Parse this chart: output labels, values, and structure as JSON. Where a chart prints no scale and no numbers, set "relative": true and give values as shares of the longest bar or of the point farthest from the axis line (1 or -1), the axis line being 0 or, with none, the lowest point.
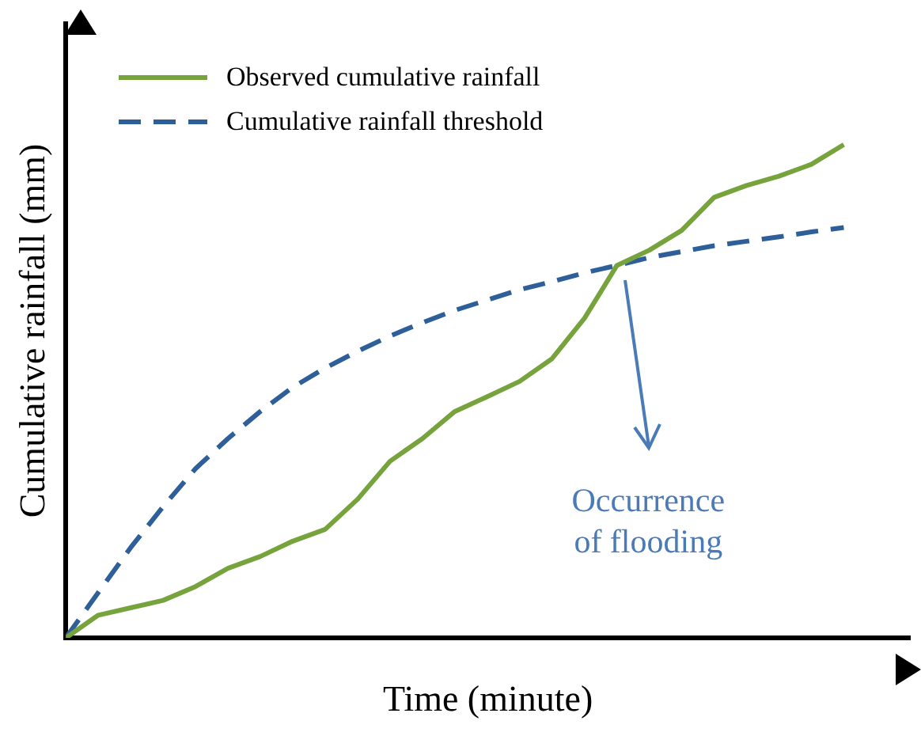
{
  "chart_data": {
    "type": "line",
    "relative": true,
    "xlabel": "Time (minute)",
    "ylabel": "Cumulative rainfall (mm)",
    "legend": "top left",
    "grid": false,
    "marker": "none",
    "categories": [
      null,
      null,
      null,
      null,
      null,
      null,
      null,
      null,
      null,
      null,
      null,
      null,
      null,
      null,
      null,
      null,
      null,
      null,
      null,
      null,
      null,
      null,
      null,
      null,
      null
    ],
    "series": [
      {
        "name": "Observed cumulative rainfall",
        "color": "#77a33d",
        "line_style": "solid",
        "values": [
          0,
          0.046,
          0.061,
          0.076,
          0.104,
          0.141,
          0.165,
          0.196,
          0.22,
          0.281,
          0.358,
          0.404,
          0.459,
          0.489,
          0.52,
          0.566,
          0.648,
          0.755,
          0.786,
          0.826,
          0.893,
          0.917,
          0.936,
          0.96,
          1
        ]
      },
      {
        "name": "Cumulative rainfall threshold",
        "color": "#2f5f99",
        "line_style": "dashed",
        "values": [
          0,
          0.092,
          0.183,
          0.266,
          0.343,
          0.404,
          0.459,
          0.508,
          0.547,
          0.581,
          0.612,
          0.639,
          0.664,
          0.685,
          0.706,
          0.722,
          0.74,
          0.755,
          0.771,
          0.783,
          0.795,
          0.804,
          0.813,
          0.823,
          0.832
        ]
      }
    ],
    "annotations": [
      "Occurrence\nof flooding"
    ]
  }
}
